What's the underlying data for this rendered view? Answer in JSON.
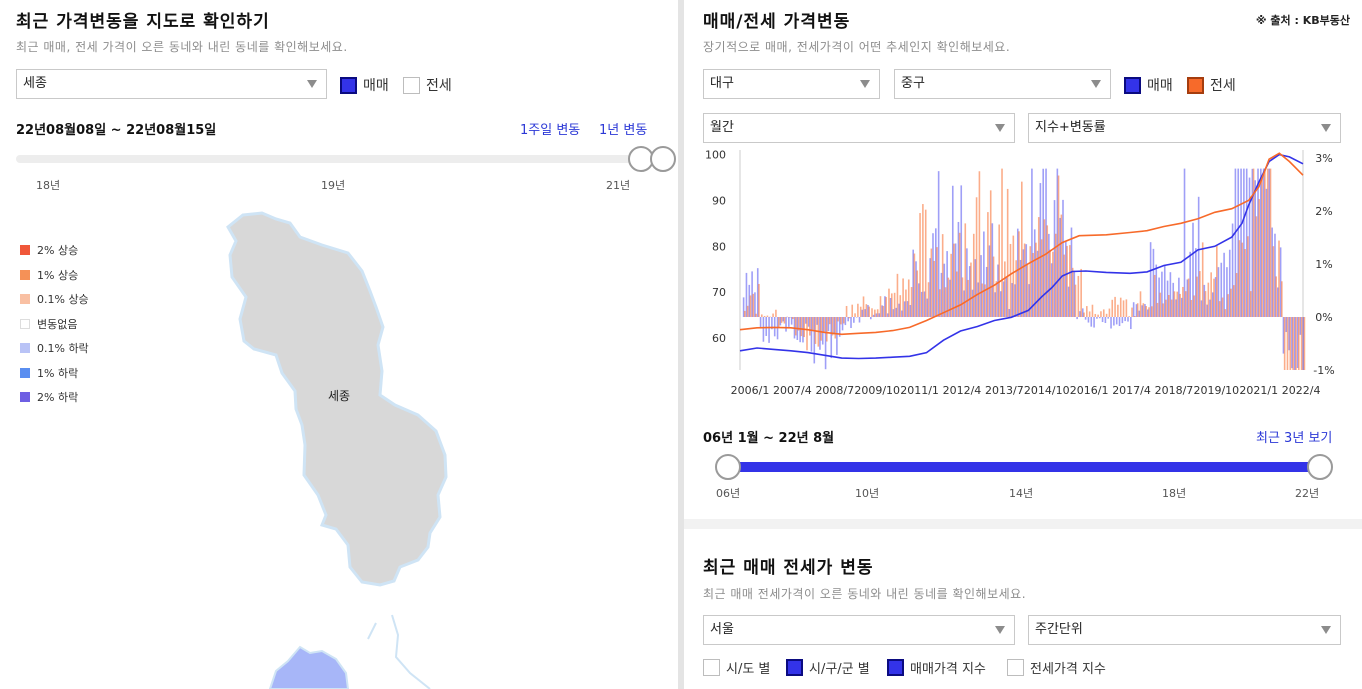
{
  "left": {
    "title": "최근 가격변동을 지도로 확인하기",
    "subtitle": "최근 매매, 전세 가격이 오른 동네와 내린 동네를 확인해보세요.",
    "region_select": "세종",
    "checkbox_sale": "매매",
    "checkbox_jeonse": "전세",
    "date_range": "22년08월08일 ~ 22년08월15일",
    "link_week": "1주일 변동",
    "link_year": "1년 변동",
    "timeline_labels": [
      "18년",
      "19년",
      "21년"
    ],
    "timeline_position": 1.0,
    "legend": [
      {
        "label": "2% 상승",
        "color": "#f0573a"
      },
      {
        "label": "1% 상승",
        "color": "#f59157"
      },
      {
        "label": "0.1% 상승",
        "color": "#f9c0a3"
      },
      {
        "label": "변동없음",
        "color": "#ffffff"
      },
      {
        "label": "0.1% 하락",
        "color": "#b9c3f6"
      },
      {
        "label": "1% 하락",
        "color": "#5a8ef0"
      },
      {
        "label": "2% 하락",
        "color": "#6e5fe3"
      }
    ],
    "map_label": "세종"
  },
  "right": {
    "title": "매매/전세 가격변동",
    "source": "※ 출처 : KB부동산",
    "subtitle": "장기적으로 매매, 전세가격이 어떤 추세인지 확인해보세요.",
    "city_select": "대구",
    "district_select": "중구",
    "checkbox_sale": "매매",
    "checkbox_jeonse": "전세",
    "period_select": "월간",
    "metric_select": "지수+변동률",
    "range_text": "06년 1월 ~ 22년 8월",
    "link_recent": "최근 3년 보기",
    "slider_labels": [
      "06년",
      "10년",
      "14년",
      "18년",
      "22년"
    ],
    "bottom": {
      "title": "최근 매매 전세가 변동",
      "subtitle": "최근 매매 전세가격이 오른 동네와 내린 동네를 확인해보세요.",
      "region_select": "서울",
      "unit_select": "주간단위",
      "cb_sido": "시/도 별",
      "cb_sigungu": "시/구/군 별",
      "cb_sale_index": "매매가격 지수",
      "cb_jeonse_index": "전세가격 지수"
    }
  },
  "chart_data": {
    "type": "line",
    "x_ticks": [
      "2006/1",
      "2007/4",
      "2008/7",
      "2009/10",
      "2011/1",
      "2012/4",
      "2013/7",
      "2014/10",
      "2016/1",
      "2017/4",
      "2018/7",
      "2019/10",
      "2021/1",
      "2022/4"
    ],
    "y_left_ticks": [
      "100",
      "90",
      "80",
      "70",
      "60"
    ],
    "y_right_ticks": [
      "3%",
      "2%",
      "1%",
      "0%",
      "-1%"
    ],
    "ylim_left": [
      53,
      101
    ],
    "ylim_right": [
      -1,
      3
    ],
    "x_range": [
      2006.0,
      2022.6
    ],
    "series": [
      {
        "name": "매매",
        "color": "#3333e8",
        "points": [
          [
            2006.0,
            57.2
          ],
          [
            2006.5,
            57.8
          ],
          [
            2007.0,
            57.5
          ],
          [
            2007.5,
            57.2
          ],
          [
            2008.0,
            56.8
          ],
          [
            2008.5,
            56.2
          ],
          [
            2009.0,
            55.6
          ],
          [
            2009.5,
            55.5
          ],
          [
            2010.0,
            55.6
          ],
          [
            2010.5,
            55.8
          ],
          [
            2011.0,
            56.0
          ],
          [
            2011.5,
            56.8
          ],
          [
            2012.0,
            59.5
          ],
          [
            2012.5,
            61.5
          ],
          [
            2013.0,
            62.5
          ],
          [
            2013.5,
            63.8
          ],
          [
            2014.0,
            64.5
          ],
          [
            2014.5,
            66.0
          ],
          [
            2014.9,
            69.0
          ],
          [
            2015.2,
            71.0
          ],
          [
            2015.5,
            73.5
          ],
          [
            2015.8,
            74.5
          ],
          [
            2016.2,
            74.6
          ],
          [
            2016.8,
            74.3
          ],
          [
            2017.5,
            74.1
          ],
          [
            2018.0,
            74.4
          ],
          [
            2018.5,
            75.8
          ],
          [
            2019.0,
            76.5
          ],
          [
            2019.5,
            79.2
          ],
          [
            2020.0,
            80.0
          ],
          [
            2020.5,
            82.0
          ],
          [
            2020.8,
            85.0
          ],
          [
            2021.0,
            89.0
          ],
          [
            2021.3,
            94.0
          ],
          [
            2021.6,
            98.5
          ],
          [
            2021.9,
            100.0
          ],
          [
            2022.2,
            99.5
          ],
          [
            2022.6,
            98.0
          ]
        ]
      },
      {
        "name": "전세",
        "color": "#f76a2a",
        "points": [
          [
            2006.0,
            61.8
          ],
          [
            2006.5,
            62.2
          ],
          [
            2007.0,
            62.3
          ],
          [
            2007.5,
            62.2
          ],
          [
            2008.0,
            61.8
          ],
          [
            2008.5,
            61.2
          ],
          [
            2009.0,
            60.8
          ],
          [
            2009.5,
            61.0
          ],
          [
            2010.0,
            61.2
          ],
          [
            2010.5,
            61.6
          ],
          [
            2011.0,
            62.3
          ],
          [
            2011.5,
            63.8
          ],
          [
            2012.0,
            65.5
          ],
          [
            2012.5,
            67.2
          ],
          [
            2013.0,
            69.5
          ],
          [
            2013.5,
            71.5
          ],
          [
            2014.0,
            74.0
          ],
          [
            2014.5,
            76.2
          ],
          [
            2015.0,
            78.2
          ],
          [
            2015.5,
            80.8
          ],
          [
            2016.0,
            82.3
          ],
          [
            2016.8,
            82.5
          ],
          [
            2017.5,
            83.0
          ],
          [
            2018.0,
            83.4
          ],
          [
            2018.5,
            84.3
          ],
          [
            2019.0,
            85.0
          ],
          [
            2019.5,
            86.0
          ],
          [
            2020.0,
            87.4
          ],
          [
            2020.5,
            88.2
          ],
          [
            2021.0,
            90.0
          ],
          [
            2021.3,
            93.0
          ],
          [
            2021.6,
            99.0
          ],
          [
            2021.9,
            100.3
          ],
          [
            2022.2,
            98.5
          ],
          [
            2022.6,
            95.5
          ]
        ]
      }
    ]
  }
}
